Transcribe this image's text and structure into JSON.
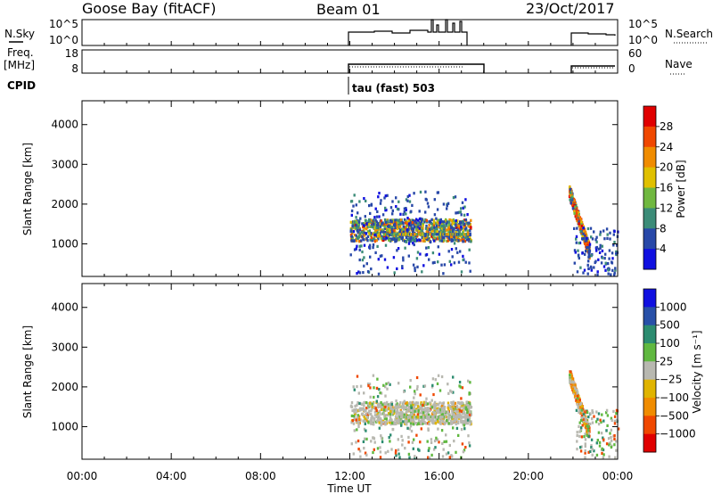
{
  "header": {
    "station": "Goose Bay (fitACF)",
    "beam": "Beam 01",
    "date": "23/Oct/2017"
  },
  "panels": {
    "nsky": {
      "left_label": "N.Sky",
      "right_label": "N.Search",
      "left_ticks": [
        "10^5",
        "10^0"
      ],
      "right_ticks": [
        "10^5",
        "10^0"
      ]
    },
    "freq": {
      "left_label_1": "Freq.",
      "left_label_2": "[MHz]",
      "right_label": "Nave",
      "left_ticks": [
        "18",
        "8"
      ],
      "right_ticks": [
        "60",
        "0"
      ]
    },
    "cpid": {
      "label": "CPID",
      "mode": "tau (fast) 503"
    }
  },
  "colors": {
    "power_scale": [
      "#1010e0",
      "#2848a8",
      "#3c8c78",
      "#70b840",
      "#e0c000",
      "#f08c00",
      "#f04800",
      "#e00000"
    ],
    "velocity_scale": [
      "#e00000",
      "#f04800",
      "#f08c00",
      "#e0b400",
      "#b8b8b0",
      "#60b840",
      "#2c8c70",
      "#2850a8",
      "#1010e0"
    ]
  },
  "chart_data": [
    {
      "type": "heatmap",
      "name": "power",
      "ylabel": "Slant Range [km]",
      "ylim": [
        180,
        4600
      ],
      "y_ticks": [
        1000,
        2000,
        3000,
        4000
      ],
      "xlim": [
        0,
        24
      ],
      "colorbar": {
        "label": "Power [dB]",
        "ticks": [
          "4",
          "8",
          "12",
          "16",
          "20",
          "24",
          "28"
        ]
      },
      "segments": [
        {
          "start": 12.0,
          "end": 17.4
        },
        {
          "start": 21.8,
          "end": 24.0
        }
      ]
    },
    {
      "type": "heatmap",
      "name": "velocity",
      "ylabel": "Slant Range [km]",
      "ylim": [
        180,
        4600
      ],
      "y_ticks": [
        1000,
        2000,
        3000,
        4000
      ],
      "xlim": [
        0,
        24
      ],
      "colorbar": {
        "label": "Velocity [m s⁻¹]",
        "ticks": [
          "1000",
          "500",
          "100",
          "25",
          "−25",
          "−100",
          "−500",
          "−1000"
        ]
      },
      "segments": [
        {
          "start": 12.0,
          "end": 17.4
        },
        {
          "start": 21.8,
          "end": 24.0
        }
      ]
    }
  ],
  "time_axis": {
    "xlabel": "Time UT",
    "ticks": [
      "00:00",
      "04:00",
      "08:00",
      "12:00",
      "16:00",
      "20:00",
      "00:00"
    ]
  }
}
